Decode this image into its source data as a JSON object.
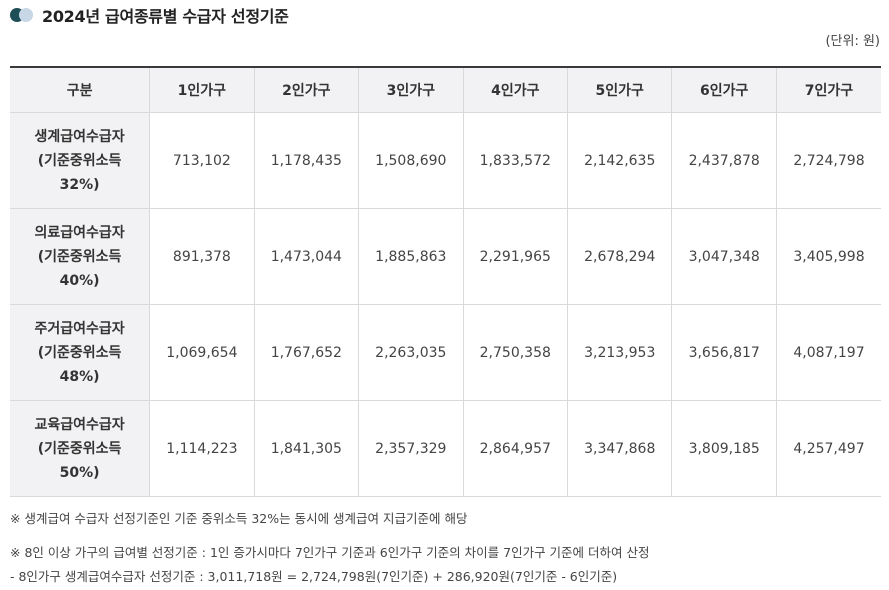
{
  "title": "2024년 급여종류별 수급자 선정기준",
  "unit": "(단위: 원)",
  "table": {
    "headers": [
      "구분",
      "1인가구",
      "2인가구",
      "3인가구",
      "4인가구",
      "5인가구",
      "6인가구",
      "7인가구"
    ],
    "rows": [
      {
        "label": [
          "생계급여수급자",
          "(기준중위소득",
          "32%)"
        ],
        "values": [
          "713,102",
          "1,178,435",
          "1,508,690",
          "1,833,572",
          "2,142,635",
          "2,437,878",
          "2,724,798"
        ]
      },
      {
        "label": [
          "의료급여수급자",
          "(기준중위소득",
          "40%)"
        ],
        "values": [
          "891,378",
          "1,473,044",
          "1,885,863",
          "2,291,965",
          "2,678,294",
          "3,047,348",
          "3,405,998"
        ]
      },
      {
        "label": [
          "주거급여수급자",
          "(기준중위소득",
          "48%)"
        ],
        "values": [
          "1,069,654",
          "1,767,652",
          "2,263,035",
          "2,750,358",
          "3,213,953",
          "3,656,817",
          "4,087,197"
        ]
      },
      {
        "label": [
          "교육급여수급자",
          "(기준중위소득",
          "50%)"
        ],
        "values": [
          "1,114,223",
          "1,841,305",
          "2,357,329",
          "2,864,957",
          "3,347,868",
          "3,809,185",
          "4,257,497"
        ]
      }
    ]
  },
  "notes": [
    "※ 생계급여 수급자 선정기준인 기준 중위소득 32%는 동시에 생계급여 지급기준에 해당",
    "※ 8인 이상 가구의 급여별 선정기준 : 1인 증가시마다 7인가구 기준과 6인가구 기준의 차이를 7인가구 기준에 더하여 산정",
    "- 8인가구 생계급여수급자 선정기준 : 3,011,718원 = 2,724,798원(7인기준) + 286,920원(7인기준 - 6인기준)"
  ]
}
